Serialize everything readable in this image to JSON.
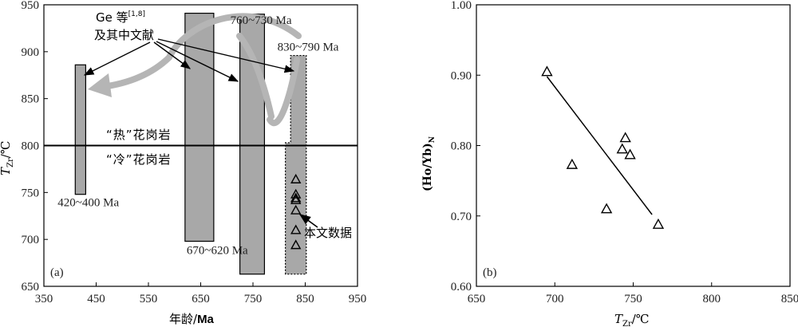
{
  "chart_data": [
    {
      "type": "bar",
      "panel_label": "(a)",
      "xlabel_cjk": "年龄/",
      "xlabel_unit": "Ma",
      "ylabel_main": "T",
      "ylabel_sub": "Zr",
      "ylabel_unit": "/℃",
      "xlim": [
        350,
        950
      ],
      "ylim": [
        650,
        950
      ],
      "x_ticks": [
        350,
        450,
        550,
        650,
        750,
        850,
        950
      ],
      "x_tick_labels": [
        "350",
        "450",
        "550",
        "650",
        "750",
        "850",
        "950"
      ],
      "y_ticks": [
        650,
        700,
        750,
        800,
        850,
        900,
        950
      ],
      "y_tick_labels": [
        "650",
        "700",
        "750",
        "800",
        "850",
        "900",
        "950"
      ],
      "threshold_line": 800,
      "threshold_labels": {
        "hot": "“热”花岗岩",
        "cold": "“冷”花岗岩"
      },
      "ranges": [
        {
          "x_from": 410,
          "x_to": 430,
          "y_from": 748,
          "y_to": 886,
          "label": "420~400 Ma"
        },
        {
          "x_from": 620,
          "x_to": 675,
          "y_from": 698,
          "y_to": 941,
          "label": "670~620 Ma"
        },
        {
          "x_from": 725,
          "x_to": 772,
          "y_from": 663,
          "y_to": 940,
          "label": "760~730 Ma"
        },
        {
          "x_from": 812,
          "x_to": 852,
          "y_from": 663,
          "y_to": 896,
          "label": "830~790 Ma",
          "dashed": true
        }
      ],
      "source_annotation": {
        "main": "Ge 等",
        "refs": "[1,8]",
        "line2": "及其中文献"
      },
      "points_annotation": "本文数据",
      "points": {
        "x": [
          832,
          832,
          832,
          832,
          832,
          832,
          832
        ],
        "y": [
          764,
          748,
          744,
          742,
          731,
          710,
          694
        ]
      }
    },
    {
      "type": "scatter",
      "panel_label": "(b)",
      "xlabel_main": "T",
      "xlabel_sub": "Zr",
      "xlabel_unit": "/℃",
      "ylabel_main": "(Ho/Yb)",
      "ylabel_sub": "N",
      "xlim": [
        650,
        850
      ],
      "ylim": [
        0.6,
        1.0
      ],
      "x_ticks": [
        650,
        700,
        750,
        800,
        850
      ],
      "x_tick_labels": [
        "650",
        "700",
        "750",
        "800",
        "850"
      ],
      "y_ticks": [
        0.6,
        0.7,
        0.8,
        0.9,
        1.0
      ],
      "y_tick_labels": [
        "0.60",
        "0.70",
        "0.80",
        "0.90",
        "1.00"
      ],
      "points": {
        "x": [
          695,
          711,
          733,
          743,
          745,
          748,
          766
        ],
        "y": [
          0.905,
          0.773,
          0.71,
          0.795,
          0.811,
          0.787,
          0.688
        ]
      },
      "trend_line": {
        "x": [
          695,
          762
        ],
        "y": [
          0.898,
          0.702
        ]
      }
    }
  ]
}
